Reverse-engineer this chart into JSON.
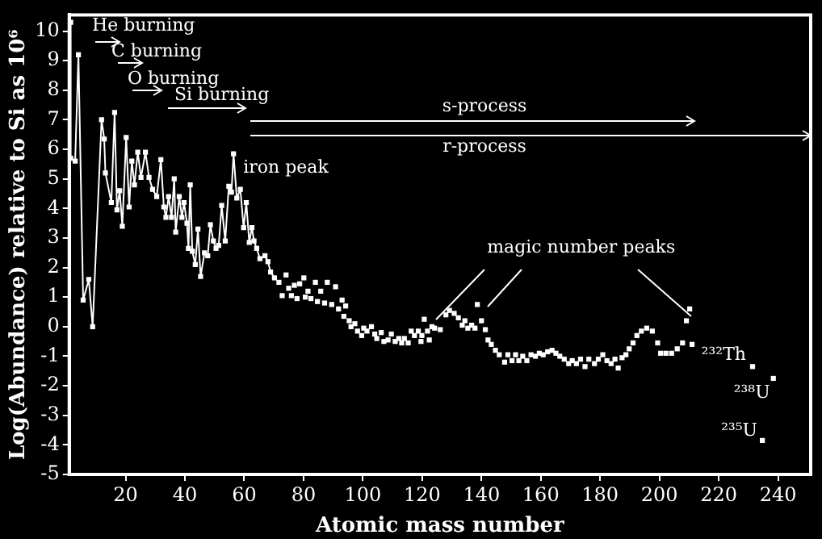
{
  "chart_data": {
    "type": "scatter",
    "xlabel": "Atomic mass number",
    "ylabel": "Log(Abundance) relative to Si as 10⁶",
    "xlim": [
      1,
      251
    ],
    "xticks": [
      20,
      40,
      60,
      80,
      100,
      120,
      140,
      160,
      180,
      200,
      220,
      240
    ],
    "ylim": [
      -5,
      10.55
    ],
    "yticks": [
      -5,
      -4,
      -3,
      -2,
      -1,
      0,
      1,
      2,
      3,
      4,
      5,
      6,
      7,
      8,
      9,
      10
    ],
    "grid": false,
    "legend": false,
    "marker": "square",
    "series": [
      {
        "type": "line",
        "color": "#ffffff",
        "x": [
          1.5,
          1.5,
          3.0,
          4.1,
          5.7,
          7.6,
          8.9,
          11.9,
          12.8,
          13.2,
          15.2,
          16.3,
          17.1,
          18.0,
          18.9,
          20.2,
          21.2,
          22.1,
          23.0,
          24.1,
          25.2,
          26.7,
          27.9,
          29.1,
          30.5,
          31.9,
          32.9,
          33.6,
          34.5,
          35.5,
          36.4,
          36.9,
          38.1,
          39.0,
          39.7,
          40.7,
          41.2,
          41.8,
          42.5,
          43.5,
          44.4,
          45.3,
          46.6,
          47.7,
          48.6,
          49.6,
          50.5,
          51.4,
          52.4,
          53.6,
          54.8,
          55.7,
          56.4,
          57.5,
          58.7,
          59.8,
          60.7,
          61.7,
          62.6,
          63.3,
          64.2,
          65.3,
          67.0,
          68.0,
          68.9,
          70.2
        ],
        "values": [
          10.3,
          5.7,
          5.6,
          9.2,
          0.9,
          1.6,
          0,
          7.0,
          6.35,
          5.2,
          4.2,
          7.25,
          3.95,
          4.6,
          3.4,
          6.4,
          4.05,
          5.6,
          4.8,
          5.9,
          5.05,
          5.9,
          5.05,
          4.65,
          4.4,
          5.65,
          4.05,
          3.7,
          4.4,
          3.7,
          5.0,
          3.2,
          4.4,
          3.7,
          4.2,
          3.5,
          2.65,
          4.8,
          2.55,
          2.1,
          3.3,
          1.7,
          2.5,
          2.4,
          3.45,
          2.9,
          2.65,
          2.75,
          4.1,
          2.9,
          4.75,
          4.55,
          5.85,
          4.35,
          4.65,
          3.35,
          4.2,
          2.85,
          3.35,
          2.9,
          2.65,
          2.3,
          2.4,
          2.2,
          1.85,
          1.65
        ]
      },
      {
        "type": "scatter",
        "color": "#ffffff",
        "x": [
          71.7,
          72.8,
          74.1,
          75.0,
          75.9,
          76.9,
          77.8,
          78.7,
          80.1,
          80.6,
          81.5,
          82.5,
          84.0,
          84.7,
          85.8,
          87.1,
          88.0,
          89.5,
          90.8,
          91.8,
          93.0,
          93.6,
          94.2,
          95.4,
          96.0,
          97.3,
          98.2,
          99.6,
          100.3,
          101.4,
          102.9,
          104.0,
          104.7,
          106.2,
          107.1,
          108.5,
          109.6,
          110.9,
          112.1,
          113.1,
          114.0,
          115.3,
          116.3,
          117.4,
          118.7,
          119.6,
          119.9,
          120.7,
          121.8,
          122.4,
          123.3,
          124.2,
          126.1,
          128.0,
          129.2,
          130.8,
          132.2,
          133.5,
          134.4,
          135.4,
          136.7,
          137.8,
          138.6,
          140.0,
          141.3,
          142.2,
          143.3,
          144.7,
          146.0,
          147.8,
          148.9,
          150.3,
          151.5,
          152.6,
          153.9,
          155.3,
          156.7,
          158.2,
          159.5,
          160.8,
          162.3,
          163.8,
          165.1,
          166.4,
          167.9,
          169.4,
          170.6,
          172.0,
          173.4,
          174.9,
          176.2,
          178.1,
          179.4,
          180.9,
          182.3,
          183.7,
          185.0,
          186.1,
          187.4,
          188.7,
          189.8,
          191.1,
          192.4,
          193.9,
          195.7,
          197.6,
          199.4,
          200.4,
          202.2,
          204.1,
          206.0,
          207.8,
          209.1,
          210.2,
          211.0,
          231.4,
          234.7,
          238.4
        ],
        "values": [
          1.5,
          1.05,
          1.75,
          1.3,
          1.05,
          1.4,
          0.95,
          1.45,
          1.65,
          1.0,
          1.2,
          0.95,
          1.5,
          0.85,
          1.2,
          0.8,
          1.5,
          0.75,
          1.35,
          0.6,
          0.9,
          0.35,
          0.7,
          0.2,
          0.0,
          0.1,
          -0.15,
          -0.3,
          -0.05,
          -0.15,
          0.0,
          -0.25,
          -0.4,
          -0.2,
          -0.5,
          -0.45,
          -0.25,
          -0.5,
          -0.4,
          -0.55,
          -0.4,
          -0.55,
          -0.15,
          -0.3,
          -0.15,
          -0.5,
          -0.3,
          0.25,
          -0.15,
          -0.45,
          0.0,
          -0.05,
          -0.1,
          0.4,
          0.55,
          0.45,
          0.3,
          0.05,
          0.2,
          -0.05,
          0.05,
          -0.05,
          0.75,
          0.2,
          -0.1,
          -0.45,
          -0.6,
          -0.8,
          -0.95,
          -1.2,
          -0.95,
          -1.15,
          -0.95,
          -1.15,
          -1.0,
          -1.15,
          -0.95,
          -1.0,
          -0.9,
          -0.95,
          -0.85,
          -0.8,
          -0.9,
          -1.0,
          -1.1,
          -1.25,
          -1.15,
          -1.25,
          -1.1,
          -1.35,
          -1.1,
          -1.25,
          -1.1,
          -0.95,
          -1.15,
          -1.25,
          -1.1,
          -1.4,
          -1.05,
          -0.95,
          -0.75,
          -0.55,
          -0.3,
          -0.15,
          -0.05,
          -0.15,
          -0.55,
          -0.9,
          -0.9,
          -0.9,
          -0.75,
          -0.55,
          0.2,
          0.6,
          -0.6,
          -1.35,
          -3.85,
          -1.75
        ]
      }
    ],
    "annotations": [
      "He burning",
      "C burning",
      "O burning",
      "Si burning",
      "s-process",
      "r-process",
      {
        "text": "iron peak",
        "x": 56.4,
        "y": 5.85
      },
      {
        "text": "magic number peaks",
        "x": 138.6,
        "y": 0.75
      },
      {
        "text": "²³²Th",
        "x": 231.4,
        "y": -1.35
      },
      {
        "text": "²³⁵U",
        "x": 234.7,
        "y": -3.85
      },
      {
        "text": "²³⁸U",
        "x": 238.4,
        "y": -1.75
      }
    ]
  }
}
